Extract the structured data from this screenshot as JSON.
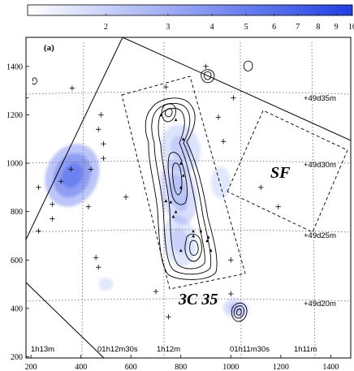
{
  "chart_data": {
    "type": "heatmap",
    "title": "",
    "panel_label": "(a)",
    "xlabel": "",
    "ylabel": "",
    "xlim": [
      180,
      1480
    ],
    "ylim": [
      195,
      1520
    ],
    "x_ticks": [
      "200",
      "400",
      "600",
      "800",
      "1000",
      "1200",
      "1400"
    ],
    "y_ticks": [
      "200",
      "400",
      "600",
      "800",
      "1000",
      "1200",
      "1400"
    ],
    "colorbar": {
      "scale": "log",
      "range": [
        1.2,
        10
      ],
      "tick_labels": [
        "2",
        "3",
        "4",
        "5",
        "6",
        "7",
        "8",
        "9",
        "10"
      ],
      "color_low": "#ffffff",
      "color_high": "#1f3fe6"
    },
    "ra_labels": [
      "1h13m",
      "01h12m30s",
      "1h12m",
      "01h11m30s",
      "1h11m"
    ],
    "dec_labels": [
      "+49d35m",
      "+49d30m",
      "+49d25m",
      "+49d20m"
    ],
    "annotations": [
      "3C 35",
      "SF"
    ],
    "emission_regions": [
      {
        "name": "west-source",
        "x": 365,
        "y": 950,
        "peak": 9.5
      },
      {
        "name": "lobe-north",
        "x": 800,
        "y": 1060,
        "peak": 5.0
      },
      {
        "name": "lobe-middle",
        "x": 790,
        "y": 880,
        "peak": 5.5
      },
      {
        "name": "lobe-south",
        "x": 795,
        "y": 680,
        "peak": 4.5
      },
      {
        "name": "sw-blob",
        "x": 500,
        "y": 500,
        "peak": 2.5
      },
      {
        "name": "ne-blob",
        "x": 1020,
        "y": 400,
        "peak": 4.5
      },
      {
        "name": "east-patch",
        "x": 960,
        "y": 920,
        "peak": 2.5
      }
    ],
    "point_sources": [
      [
        180,
        1270
      ],
      [
        365,
        1310
      ],
      [
        480,
        1200
      ],
      [
        470,
        1140
      ],
      [
        490,
        1080
      ],
      [
        490,
        1020
      ],
      [
        230,
        900
      ],
      [
        285,
        830
      ],
      [
        285,
        770
      ],
      [
        230,
        720
      ],
      [
        320,
        925
      ],
      [
        360,
        975
      ],
      [
        440,
        975
      ],
      [
        430,
        820
      ],
      [
        460,
        610
      ],
      [
        470,
        570
      ],
      [
        580,
        860
      ],
      [
        740,
        1315
      ],
      [
        900,
        1400
      ],
      [
        1010,
        1270
      ],
      [
        950,
        1190
      ],
      [
        970,
        1090
      ],
      [
        1120,
        900
      ],
      [
        1190,
        820
      ],
      [
        700,
        470
      ],
      [
        750,
        365
      ],
      [
        1000,
        460
      ],
      [
        1000,
        600
      ]
    ],
    "knots": [
      [
        740,
        845
      ],
      [
        760,
        840
      ],
      [
        770,
        780
      ],
      [
        780,
        800
      ],
      [
        800,
        900
      ],
      [
        850,
        720
      ],
      [
        800,
        640
      ],
      [
        850,
        700
      ],
      [
        880,
        720
      ],
      [
        905,
        680
      ],
      [
        920,
        640
      ],
      [
        910,
        695
      ],
      [
        800,
        1000
      ],
      [
        810,
        950
      ],
      [
        810,
        1100
      ],
      [
        720,
        1200
      ],
      [
        780,
        1180
      ]
    ]
  }
}
